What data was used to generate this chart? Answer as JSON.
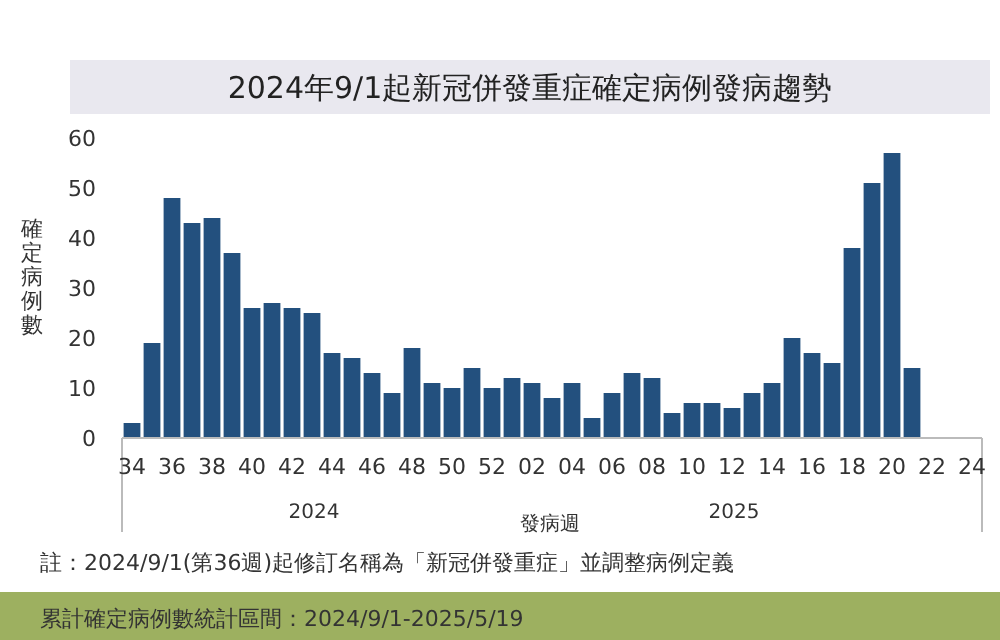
{
  "chart_data": {
    "type": "bar",
    "title": "2024年9/1起新冠併發重症確定病例發病趨勢",
    "ylabel": "確定病例數",
    "xlabel": "發病週",
    "categories": [
      "34",
      null,
      "36",
      null,
      "38",
      null,
      "40",
      null,
      "42",
      null,
      "44",
      null,
      "46",
      null,
      "48",
      null,
      "50",
      null,
      "52",
      null,
      "02",
      null,
      "04",
      null,
      "06",
      null,
      "08",
      null,
      "10",
      null,
      "12",
      null,
      "14",
      null,
      "16",
      null,
      "18",
      null,
      "20",
      null,
      "22",
      null,
      "24"
    ],
    "values": [
      3,
      19,
      48,
      43,
      44,
      37,
      26,
      27,
      26,
      25,
      17,
      16,
      13,
      9,
      18,
      11,
      10,
      14,
      10,
      12,
      11,
      8,
      11,
      4,
      9,
      13,
      12,
      5,
      7,
      7,
      6,
      9,
      11,
      20,
      17,
      15,
      38,
      51,
      57,
      14,
      null,
      null,
      null
    ],
    "color": "#23507e",
    "ylim": [
      0,
      60
    ],
    "yticks": [
      0,
      10,
      20,
      30,
      40,
      50,
      60
    ],
    "annotations": [
      "2024",
      "2025",
      "註：2024/9/1(第36週)起修訂名稱為「新冠併發重症」並調整病例定義",
      "累計確定病例數統計區間：2024/9/1-2025/5/19"
    ]
  }
}
